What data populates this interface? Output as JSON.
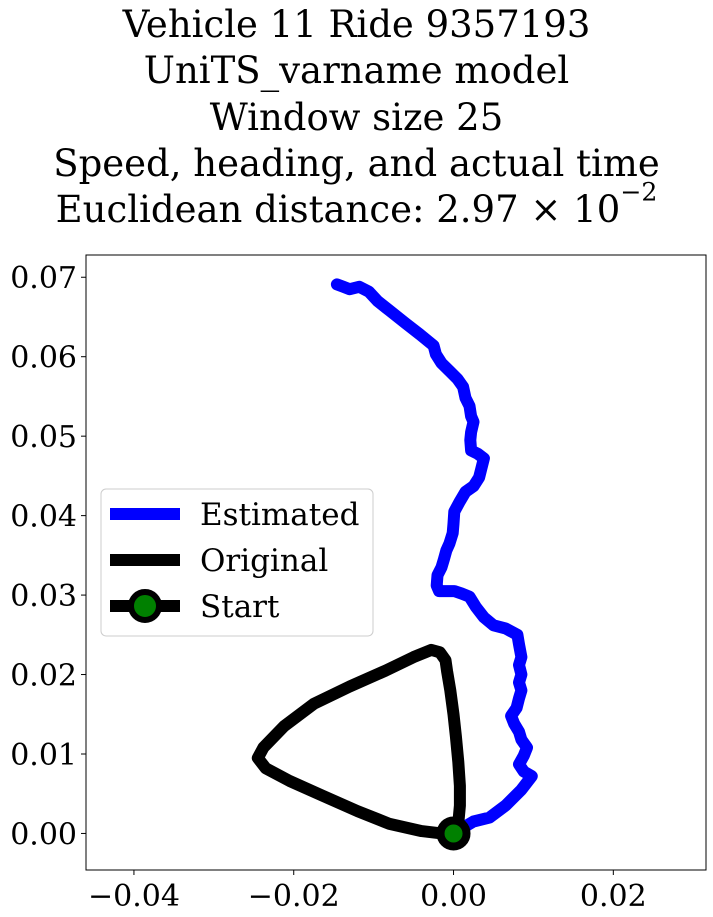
{
  "title": {
    "line1": "Vehicle 11 Ride 9357193",
    "line2": "UniTS_varname model",
    "line3": "Window size 25",
    "line4": "Speed, heading, and actual time",
    "line5_prefix": "Euclidean distance: 2.97",
    "line5_times": "×",
    "line5_base": "10",
    "line5_exponent": "−2"
  },
  "chart_data": {
    "type": "line",
    "xlim": [
      -0.046,
      0.0316
    ],
    "ylim": [
      -0.0046,
      0.0728
    ],
    "xticks": [
      -0.04,
      -0.02,
      0.0,
      0.02
    ],
    "xtick_labels": [
      "−0.04",
      "−0.02",
      "0.00",
      "0.02"
    ],
    "yticks": [
      0.0,
      0.01,
      0.02,
      0.03,
      0.04,
      0.05,
      0.06,
      0.07
    ],
    "ytick_labels": [
      "0.00",
      "0.01",
      "0.02",
      "0.03",
      "0.04",
      "0.05",
      "0.06",
      "0.07"
    ],
    "grid": false,
    "legend_position": "center-left",
    "series": [
      {
        "name": "Estimated",
        "color": "#0000ff",
        "points": [
          [
            0.0,
            0.0
          ],
          [
            0.0025,
            0.0015
          ],
          [
            0.0045,
            0.002
          ],
          [
            0.0065,
            0.0035
          ],
          [
            0.0085,
            0.0055
          ],
          [
            0.0098,
            0.0072
          ],
          [
            0.0088,
            0.0078
          ],
          [
            0.0082,
            0.0087
          ],
          [
            0.0088,
            0.0098
          ],
          [
            0.0092,
            0.0108
          ],
          [
            0.0085,
            0.0118
          ],
          [
            0.0082,
            0.0128
          ],
          [
            0.0076,
            0.0138
          ],
          [
            0.0072,
            0.0148
          ],
          [
            0.0079,
            0.0158
          ],
          [
            0.0082,
            0.017
          ],
          [
            0.0085,
            0.018
          ],
          [
            0.0082,
            0.019
          ],
          [
            0.0085,
            0.02
          ],
          [
            0.0082,
            0.0212
          ],
          [
            0.0085,
            0.0222
          ],
          [
            0.0082,
            0.0238
          ],
          [
            0.008,
            0.025
          ],
          [
            0.0065,
            0.0258
          ],
          [
            0.005,
            0.0262
          ],
          [
            0.0038,
            0.0272
          ],
          [
            0.0028,
            0.0285
          ],
          [
            0.002,
            0.0298
          ],
          [
            0.001,
            0.0302
          ],
          [
            0.0001,
            0.0305
          ],
          [
            -0.0009,
            0.0305
          ],
          [
            -0.0018,
            0.0305
          ],
          [
            -0.0021,
            0.0312
          ],
          [
            -0.002,
            0.0325
          ],
          [
            -0.0015,
            0.0335
          ],
          [
            -0.0012,
            0.0345
          ],
          [
            -0.0009,
            0.0356
          ],
          [
            -0.0005,
            0.0365
          ],
          [
            -0.0001,
            0.0378
          ],
          [
            0.0,
            0.039
          ],
          [
            0.0001,
            0.0405
          ],
          [
            0.0008,
            0.0418
          ],
          [
            0.0015,
            0.043
          ],
          [
            0.0025,
            0.0437
          ],
          [
            0.0032,
            0.0448
          ],
          [
            0.0035,
            0.046
          ],
          [
            0.0038,
            0.0472
          ],
          [
            0.003,
            0.0478
          ],
          [
            0.0022,
            0.0482
          ],
          [
            0.0021,
            0.0495
          ],
          [
            0.0022,
            0.0505
          ],
          [
            0.0025,
            0.0518
          ],
          [
            0.0022,
            0.0525
          ],
          [
            0.002,
            0.0538
          ],
          [
            0.0015,
            0.0548
          ],
          [
            0.0012,
            0.0562
          ],
          [
            0.0005,
            0.0572
          ],
          [
            -0.0005,
            0.0582
          ],
          [
            -0.0015,
            0.0592
          ],
          [
            -0.0022,
            0.0603
          ],
          [
            -0.0025,
            0.0614
          ],
          [
            -0.0042,
            0.0628
          ],
          [
            -0.006,
            0.0642
          ],
          [
            -0.008,
            0.0658
          ],
          [
            -0.0095,
            0.067
          ],
          [
            -0.0106,
            0.0682
          ],
          [
            -0.0118,
            0.0688
          ],
          [
            -0.013,
            0.0685
          ],
          [
            -0.0138,
            0.0688
          ],
          [
            -0.0146,
            0.0691
          ]
        ]
      },
      {
        "name": "Original",
        "color": "#000000",
        "points": [
          [
            0.0,
            0.0
          ],
          [
            0.0006,
            0.0013
          ],
          [
            0.0008,
            0.0035
          ],
          [
            0.0008,
            0.006
          ],
          [
            0.0006,
            0.009
          ],
          [
            0.0003,
            0.0122
          ],
          [
            0.0,
            0.015
          ],
          [
            -0.0004,
            0.018
          ],
          [
            -0.0008,
            0.0204
          ],
          [
            -0.001,
            0.0218
          ],
          [
            -0.0017,
            0.0228
          ],
          [
            -0.0028,
            0.0231
          ],
          [
            -0.005,
            0.0222
          ],
          [
            -0.0085,
            0.0205
          ],
          [
            -0.013,
            0.0185
          ],
          [
            -0.0175,
            0.0163
          ],
          [
            -0.0212,
            0.0135
          ],
          [
            -0.0238,
            0.0108
          ],
          [
            -0.0245,
            0.0095
          ],
          [
            -0.0235,
            0.0082
          ],
          [
            -0.0205,
            0.0066
          ],
          [
            -0.0165,
            0.0048
          ],
          [
            -0.012,
            0.0028
          ],
          [
            -0.008,
            0.0012
          ],
          [
            -0.004,
            0.0003
          ],
          [
            -0.0015,
            0.0
          ],
          [
            0.0,
            0.0
          ]
        ]
      }
    ],
    "start": {
      "name": "Start",
      "point": [
        0.0,
        0.0
      ],
      "marker_face_color": "#008000",
      "marker_edge_color": "#000000"
    }
  }
}
